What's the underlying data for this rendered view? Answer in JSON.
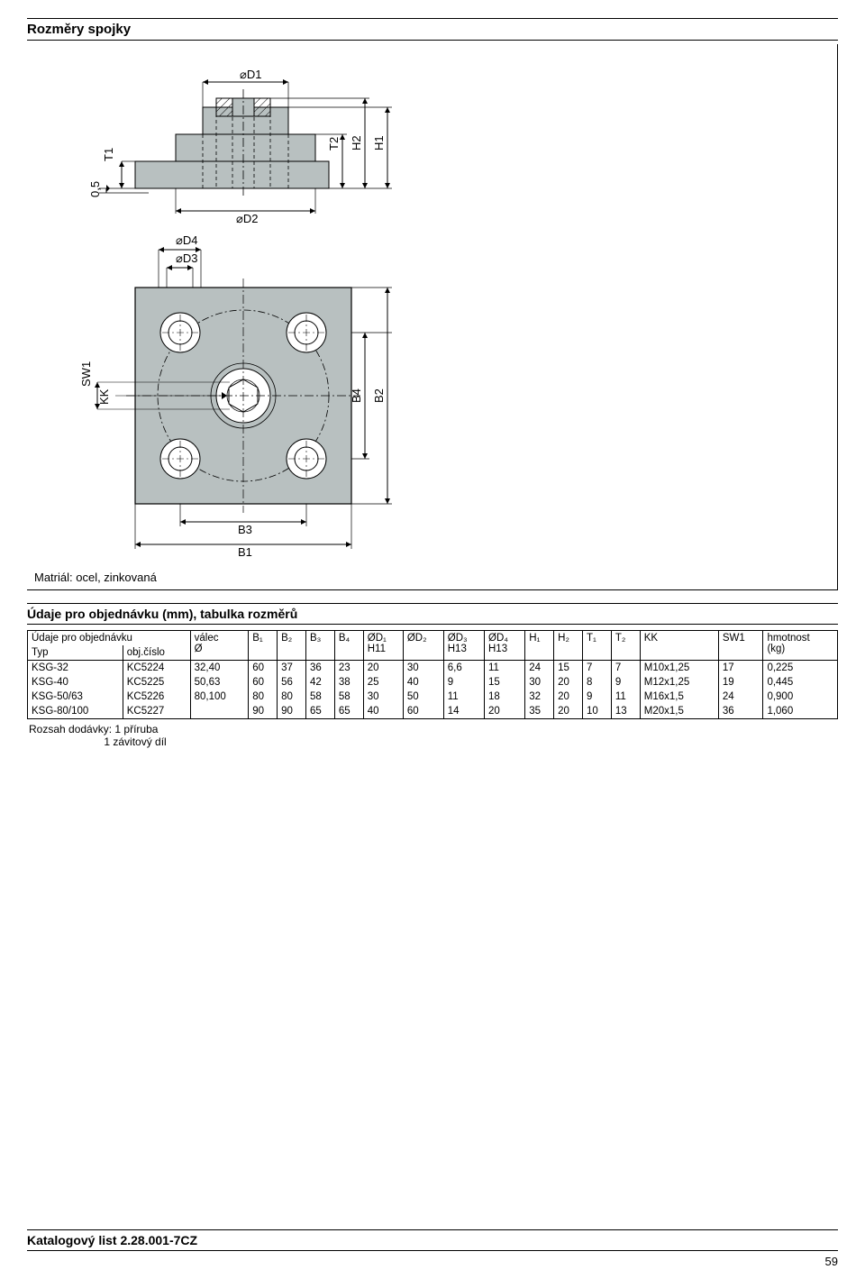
{
  "title": "Rozměry spojky",
  "material_note": "Matriál: ocel, zinkovaná",
  "table_title": "Údaje pro objednávku (mm), tabulka rozměrů",
  "order_header_line1": "Údaje pro objednávku",
  "order_header_typ": "Typ",
  "order_header_obj": "obj.číslo",
  "columns": {
    "valec": "válec",
    "diam": "Ø",
    "b1": "B₁",
    "b2": "B₂",
    "b3": "B₃",
    "b4": "B₄",
    "od1": "ØD₁",
    "od1_tol": "H11",
    "od2": "ØD₂",
    "od3": "ØD₃",
    "od3_tol": "H13",
    "od4": "ØD₄",
    "od4_tol": "H13",
    "h1": "H₁",
    "h2": "H₂",
    "t1": "T₁",
    "t2": "T₂",
    "kk": "KK",
    "sw1": "SW1",
    "mass": "hmotnost",
    "mass_unit": "(kg)"
  },
  "rows": [
    {
      "typ": "KSG-32",
      "obj": "KC5224",
      "valec": "32,40",
      "b1": "60",
      "b2": "37",
      "b3": "36",
      "b4": "23",
      "od1": "20",
      "od2": "30",
      "od3": "6,6",
      "od4": "11",
      "h1": "24",
      "h2": "15",
      "t1": "7",
      "t2": "7",
      "kk": "M10x1,25",
      "sw1": "17",
      "mass": "0,225"
    },
    {
      "typ": "KSG-40",
      "obj": "KC5225",
      "valec": "50,63",
      "b1": "60",
      "b2": "56",
      "b3": "42",
      "b4": "38",
      "od1": "25",
      "od2": "40",
      "od3": "9",
      "od4": "15",
      "h1": "30",
      "h2": "20",
      "t1": "8",
      "t2": "9",
      "kk": "M12x1,25",
      "sw1": "19",
      "mass": "0,445"
    },
    {
      "typ": "KSG-50/63",
      "obj": "KC5226",
      "valec": "80,100",
      "b1": "80",
      "b2": "80",
      "b3": "58",
      "b4": "58",
      "od1": "30",
      "od2": "50",
      "od3": "11",
      "od4": "18",
      "h1": "32",
      "h2": "20",
      "t1": "9",
      "t2": "11",
      "kk": "M16x1,5",
      "sw1": "24",
      "mass": "0,900"
    },
    {
      "typ": "KSG-80/100",
      "obj": "KC5227",
      "valec": "",
      "b1": "90",
      "b2": "90",
      "b3": "65",
      "b4": "65",
      "od1": "40",
      "od2": "60",
      "od3": "14",
      "od4": "20",
      "h1": "35",
      "h2": "20",
      "t1": "10",
      "t2": "13",
      "kk": "M20x1,5",
      "sw1": "36",
      "mass": "1,060"
    }
  ],
  "scope_label": "Rozsah dodávky:",
  "scope_item1": "1 příruba",
  "scope_item2": "1 závitový díl",
  "footer_text": "Katalogový list 2.28.001-7CZ",
  "page_number": "59",
  "drawing": {
    "labels": {
      "d1": "D1",
      "d2": "D2",
      "d3": "D3",
      "d4": "D4",
      "t1": "T1",
      "t2": "T2",
      "h1": "H1",
      "h2": "H2",
      "b1": "B1",
      "b2": "B2",
      "b3": "B3",
      "b4": "B4",
      "sw1": "SW1",
      "kk": "KK",
      "zeroFive": "0,5"
    },
    "colors": {
      "fill": "#b8c0c0",
      "stroke": "#000000",
      "dashlight": "#000000",
      "bg": "#ffffff"
    }
  }
}
